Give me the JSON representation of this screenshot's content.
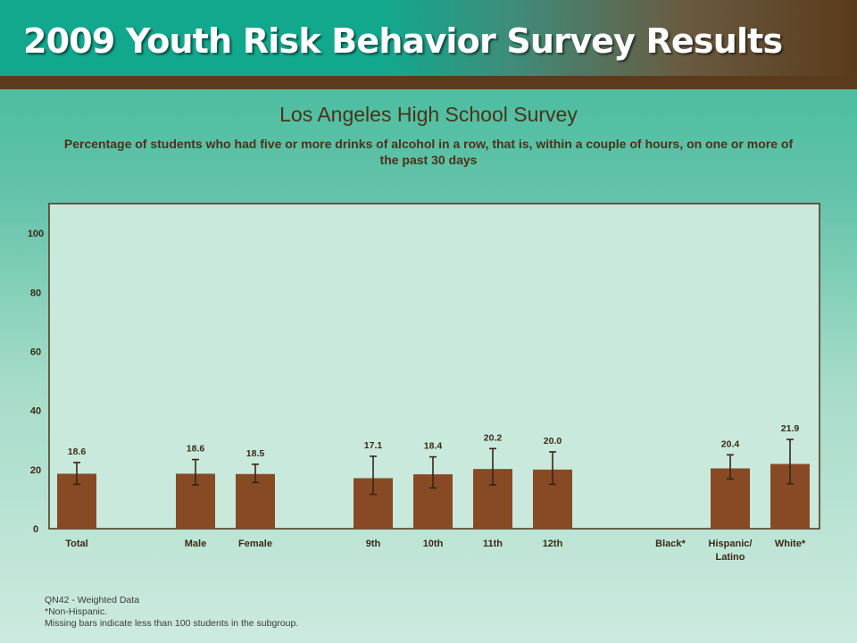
{
  "header": {
    "title": "2009 Youth Risk Behavior Survey Results"
  },
  "chart_data": {
    "type": "bar",
    "title": "Los Angeles High School Survey",
    "subtitle": "Percentage of students who had five or more drinks of alcohol in a row, that is, within a couple of hours, on one or more of the past 30 days",
    "categories": [
      "Total",
      "Male",
      "Female",
      "9th",
      "10th",
      "11th",
      "12th",
      "Black*",
      "Hispanic/ Latino",
      "White*"
    ],
    "values": [
      18.6,
      18.6,
      18.5,
      17.1,
      18.4,
      20.2,
      20.0,
      null,
      20.4,
      21.9
    ],
    "value_labels": [
      "18.6",
      "18.6",
      "18.5",
      "17.1",
      "18.4",
      "20.2",
      "20.0",
      "",
      "20.4",
      "21.9"
    ],
    "error_low": [
      15.0,
      14.8,
      15.6,
      11.6,
      13.8,
      14.8,
      15.0,
      null,
      16.8,
      15.2
    ],
    "error_high": [
      22.4,
      23.4,
      21.8,
      24.5,
      24.3,
      27.1,
      26.0,
      null,
      25.0,
      30.2
    ],
    "ylim": [
      0,
      110
    ],
    "yticks": [
      "0",
      "20",
      "40",
      "60",
      "80",
      "100"
    ],
    "ytick_values": [
      0,
      20,
      40,
      60,
      80,
      100
    ],
    "xlabel": "",
    "ylabel": "",
    "grid": false,
    "legend": "none",
    "bar_color": "#874a25",
    "error_color": "#3a2414",
    "plot_bg": "#c9e9dd",
    "plot_border": "#4a3318"
  },
  "footnotes": [
    "QN42 - Weighted Data",
    "*Non-Hispanic.",
    "Missing bars indicate less than 100 students in the subgroup."
  ]
}
